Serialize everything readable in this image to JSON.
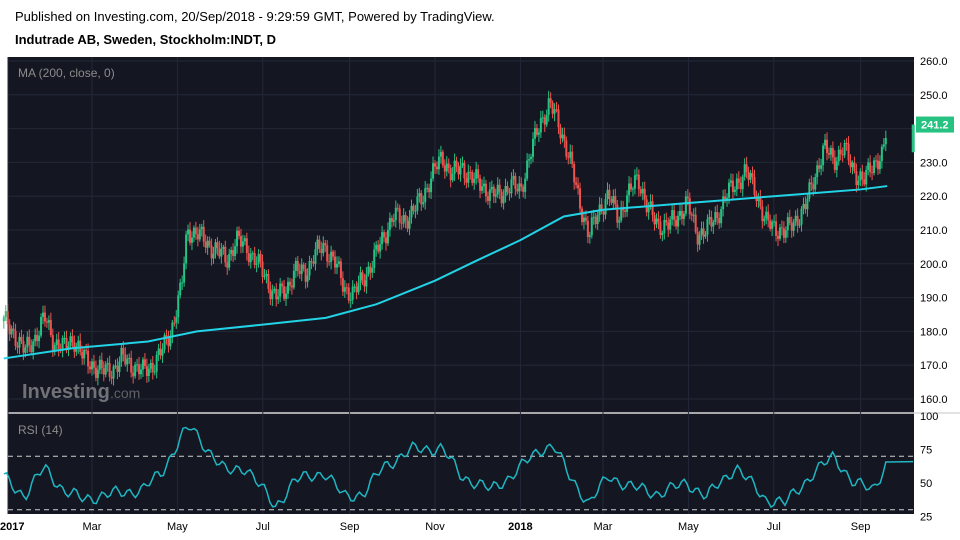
{
  "header": {
    "published": "Published on Investing.com, 20/Sep/2018 - 9:29:59 GMT, Powered by TradingView.",
    "instrument": "Indutrade AB, Sweden, Stockholm:INDT, D"
  },
  "watermark": {
    "brand": "Investing",
    "suffix": ".com"
  },
  "colors": {
    "background": "#141722",
    "up": "#26c281",
    "down": "#ef5350",
    "ma": "#22d3e6",
    "rsi": "#1fb6c3",
    "last_price_bg": "#26c281"
  },
  "chart_data": [
    {
      "type": "candlestick",
      "indicator_label": "MA (200, close, 0)",
      "y_ticks": [
        "260.0",
        "250.0",
        "240.0",
        "230.0",
        "220.0",
        "210.0",
        "200.0",
        "190.0",
        "180.0",
        "170.0",
        "160.0"
      ],
      "ylim": [
        157,
        262
      ],
      "x_ticks": [
        "2017",
        "Mar",
        "May",
        "Jul",
        "Sep",
        "Nov",
        "2018",
        "Mar",
        "May",
        "Jul",
        "Sep"
      ],
      "last_price": "241.2",
      "close_series": [
        {
          "x": "2016-12-28",
          "y": 183
        },
        {
          "x": "2017-01-05",
          "y": 179
        },
        {
          "x": "2017-01-12",
          "y": 174
        },
        {
          "x": "2017-01-19",
          "y": 178
        },
        {
          "x": "2017-01-26",
          "y": 184
        },
        {
          "x": "2017-02-02",
          "y": 177
        },
        {
          "x": "2017-02-09",
          "y": 175
        },
        {
          "x": "2017-02-16",
          "y": 178
        },
        {
          "x": "2017-02-23",
          "y": 172
        },
        {
          "x": "2017-03-02",
          "y": 170
        },
        {
          "x": "2017-03-09",
          "y": 168
        },
        {
          "x": "2017-03-16",
          "y": 169
        },
        {
          "x": "2017-03-23",
          "y": 172
        },
        {
          "x": "2017-03-30",
          "y": 170
        },
        {
          "x": "2017-04-06",
          "y": 168
        },
        {
          "x": "2017-04-13",
          "y": 170
        },
        {
          "x": "2017-04-20",
          "y": 174
        },
        {
          "x": "2017-04-27",
          "y": 181
        },
        {
          "x": "2017-05-04",
          "y": 193
        },
        {
          "x": "2017-05-08",
          "y": 210
        },
        {
          "x": "2017-05-15",
          "y": 209
        },
        {
          "x": "2017-05-22",
          "y": 206
        },
        {
          "x": "2017-05-29",
          "y": 204
        },
        {
          "x": "2017-06-05",
          "y": 201
        },
        {
          "x": "2017-06-12",
          "y": 207
        },
        {
          "x": "2017-06-19",
          "y": 205
        },
        {
          "x": "2017-06-26",
          "y": 201
        },
        {
          "x": "2017-07-03",
          "y": 196
        },
        {
          "x": "2017-07-10",
          "y": 190
        },
        {
          "x": "2017-07-17",
          "y": 192
        },
        {
          "x": "2017-07-24",
          "y": 198
        },
        {
          "x": "2017-07-31",
          "y": 197
        },
        {
          "x": "2017-08-07",
          "y": 203
        },
        {
          "x": "2017-08-14",
          "y": 205
        },
        {
          "x": "2017-08-21",
          "y": 201
        },
        {
          "x": "2017-08-28",
          "y": 193
        },
        {
          "x": "2017-09-04",
          "y": 191
        },
        {
          "x": "2017-09-11",
          "y": 196
        },
        {
          "x": "2017-09-18",
          "y": 201
        },
        {
          "x": "2017-09-25",
          "y": 208
        },
        {
          "x": "2017-10-02",
          "y": 214
        },
        {
          "x": "2017-10-09",
          "y": 213
        },
        {
          "x": "2017-10-16",
          "y": 215
        },
        {
          "x": "2017-10-23",
          "y": 220
        },
        {
          "x": "2017-10-30",
          "y": 226
        },
        {
          "x": "2017-11-06",
          "y": 232
        },
        {
          "x": "2017-11-13",
          "y": 226
        },
        {
          "x": "2017-11-20",
          "y": 229
        },
        {
          "x": "2017-11-27",
          "y": 225
        },
        {
          "x": "2017-12-04",
          "y": 224
        },
        {
          "x": "2017-12-11",
          "y": 220
        },
        {
          "x": "2017-12-18",
          "y": 221
        },
        {
          "x": "2017-12-25",
          "y": 223
        },
        {
          "x": "2018-01-01",
          "y": 222
        },
        {
          "x": "2018-01-08",
          "y": 232
        },
        {
          "x": "2018-01-15",
          "y": 242
        },
        {
          "x": "2018-01-22",
          "y": 247
        },
        {
          "x": "2018-01-29",
          "y": 241
        },
        {
          "x": "2018-02-05",
          "y": 231
        },
        {
          "x": "2018-02-12",
          "y": 219
        },
        {
          "x": "2018-02-19",
          "y": 208
        },
        {
          "x": "2018-02-26",
          "y": 216
        },
        {
          "x": "2018-03-05",
          "y": 220
        },
        {
          "x": "2018-03-12",
          "y": 214
        },
        {
          "x": "2018-03-19",
          "y": 220
        },
        {
          "x": "2018-03-26",
          "y": 226
        },
        {
          "x": "2018-04-02",
          "y": 216
        },
        {
          "x": "2018-04-09",
          "y": 212
        },
        {
          "x": "2018-04-16",
          "y": 211
        },
        {
          "x": "2018-04-23",
          "y": 214
        },
        {
          "x": "2018-04-30",
          "y": 218
        },
        {
          "x": "2018-05-07",
          "y": 209
        },
        {
          "x": "2018-05-14",
          "y": 210
        },
        {
          "x": "2018-05-21",
          "y": 214
        },
        {
          "x": "2018-05-28",
          "y": 220
        },
        {
          "x": "2018-06-04",
          "y": 224
        },
        {
          "x": "2018-06-11",
          "y": 227
        },
        {
          "x": "2018-06-18",
          "y": 222
        },
        {
          "x": "2018-06-25",
          "y": 212
        },
        {
          "x": "2018-07-02",
          "y": 211
        },
        {
          "x": "2018-07-09",
          "y": 209
        },
        {
          "x": "2018-07-16",
          "y": 213
        },
        {
          "x": "2018-07-23",
          "y": 216
        },
        {
          "x": "2018-07-30",
          "y": 226
        },
        {
          "x": "2018-08-06",
          "y": 234
        },
        {
          "x": "2018-08-13",
          "y": 231
        },
        {
          "x": "2018-08-20",
          "y": 234
        },
        {
          "x": "2018-08-27",
          "y": 228
        },
        {
          "x": "2018-09-03",
          "y": 224
        },
        {
          "x": "2018-09-10",
          "y": 230
        },
        {
          "x": "2018-09-17",
          "y": 232
        },
        {
          "x": "2018-09-20",
          "y": 241.2
        }
      ],
      "ma_series": [
        {
          "x": "2016-12-28",
          "y": 172
        },
        {
          "x": "2017-02-15",
          "y": 175
        },
        {
          "x": "2017-04-10",
          "y": 177
        },
        {
          "x": "2017-05-15",
          "y": 180
        },
        {
          "x": "2017-07-01",
          "y": 182
        },
        {
          "x": "2017-08-15",
          "y": 184
        },
        {
          "x": "2017-09-20",
          "y": 188
        },
        {
          "x": "2017-11-01",
          "y": 195
        },
        {
          "x": "2017-12-01",
          "y": 201
        },
        {
          "x": "2018-01-01",
          "y": 207
        },
        {
          "x": "2018-02-01",
          "y": 214
        },
        {
          "x": "2018-03-01",
          "y": 216
        },
        {
          "x": "2018-04-01",
          "y": 217
        },
        {
          "x": "2018-05-01",
          "y": 218
        },
        {
          "x": "2018-06-01",
          "y": 219
        },
        {
          "x": "2018-07-01",
          "y": 220
        },
        {
          "x": "2018-08-01",
          "y": 221
        },
        {
          "x": "2018-09-01",
          "y": 222
        },
        {
          "x": "2018-09-20",
          "y": 223
        }
      ]
    },
    {
      "type": "line",
      "indicator_label": "RSI (14)",
      "y_ticks": [
        "100",
        "75",
        "50",
        "25"
      ],
      "ylim": [
        22,
        100
      ],
      "bands": [
        70,
        30
      ],
      "series": [
        {
          "x": "2016-12-28",
          "y": 55
        },
        {
          "x": "2017-01-12",
          "y": 40
        },
        {
          "x": "2017-01-26",
          "y": 62
        },
        {
          "x": "2017-02-09",
          "y": 44
        },
        {
          "x": "2017-02-23",
          "y": 38
        },
        {
          "x": "2017-03-16",
          "y": 42
        },
        {
          "x": "2017-04-06",
          "y": 45
        },
        {
          "x": "2017-04-20",
          "y": 58
        },
        {
          "x": "2017-05-04",
          "y": 85
        },
        {
          "x": "2017-05-10",
          "y": 92
        },
        {
          "x": "2017-05-22",
          "y": 76
        },
        {
          "x": "2017-06-05",
          "y": 58
        },
        {
          "x": "2017-06-19",
          "y": 62
        },
        {
          "x": "2017-07-10",
          "y": 32
        },
        {
          "x": "2017-07-24",
          "y": 52
        },
        {
          "x": "2017-08-14",
          "y": 58
        },
        {
          "x": "2017-08-28",
          "y": 40
        },
        {
          "x": "2017-09-11",
          "y": 42
        },
        {
          "x": "2017-09-25",
          "y": 62
        },
        {
          "x": "2017-10-16",
          "y": 75
        },
        {
          "x": "2017-11-06",
          "y": 76
        },
        {
          "x": "2017-11-20",
          "y": 55
        },
        {
          "x": "2017-12-11",
          "y": 45
        },
        {
          "x": "2017-12-25",
          "y": 55
        },
        {
          "x": "2018-01-15",
          "y": 75
        },
        {
          "x": "2018-01-25",
          "y": 78
        },
        {
          "x": "2018-02-05",
          "y": 55
        },
        {
          "x": "2018-02-19",
          "y": 35
        },
        {
          "x": "2018-03-05",
          "y": 55
        },
        {
          "x": "2018-03-19",
          "y": 48
        },
        {
          "x": "2018-04-09",
          "y": 42
        },
        {
          "x": "2018-04-30",
          "y": 50
        },
        {
          "x": "2018-05-14",
          "y": 40
        },
        {
          "x": "2018-06-04",
          "y": 62
        },
        {
          "x": "2018-06-25",
          "y": 38
        },
        {
          "x": "2018-07-09",
          "y": 35
        },
        {
          "x": "2018-07-30",
          "y": 58
        },
        {
          "x": "2018-08-13",
          "y": 70
        },
        {
          "x": "2018-08-27",
          "y": 50
        },
        {
          "x": "2018-09-10",
          "y": 45
        },
        {
          "x": "2018-09-20",
          "y": 66
        }
      ]
    }
  ]
}
